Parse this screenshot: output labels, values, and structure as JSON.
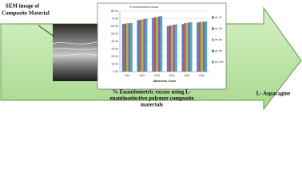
{
  "sem_label": [
    "SEM image of",
    "Composite Material"
  ],
  "caption": [
    "% Enantiometric excess using L-",
    "enantioselective polymer composite",
    "materials"
  ],
  "target_label": "L- Asparagine",
  "chart_data": {
    "type": "bar",
    "y_label": "% Enantiomeric excess",
    "x_label": "Materials Code",
    "categories": [
      "EA1",
      "EA2",
      "EA3",
      "EA4",
      "EA5",
      "EA6"
    ],
    "series": [
      {
        "name": "ee 2h",
        "color": "#4f81bd",
        "values": [
          63,
          68,
          71,
          60,
          63,
          65
        ]
      },
      {
        "name": "ee 4h",
        "color": "#c0504d",
        "values": [
          63.5,
          68.5,
          72,
          61,
          64,
          65.5
        ]
      },
      {
        "name": "ee 6h",
        "color": "#9bbb59",
        "values": [
          64,
          69,
          72.5,
          61.5,
          64.5,
          66
        ]
      },
      {
        "name": "ee 8h",
        "color": "#8064a2",
        "values": [
          64,
          69.5,
          73,
          62,
          65,
          66
        ]
      },
      {
        "name": "ee 10h",
        "color": "#4bacc6",
        "values": [
          64.5,
          70,
          73.5,
          62.5,
          65.5,
          66.5
        ]
      }
    ],
    "ylim": [
      0,
      80
    ],
    "yticks": [
      {
        "value": 0,
        "label": "0.00"
      },
      {
        "value": 10,
        "label": "10.00"
      },
      {
        "value": 20,
        "label": "20.00"
      },
      {
        "value": 30,
        "label": "30.00"
      },
      {
        "value": 40,
        "label": "40.00"
      },
      {
        "value": 50,
        "label": "50.00"
      },
      {
        "value": 60,
        "label": "60.00"
      },
      {
        "value": 70,
        "label": "70.00"
      },
      {
        "value": 80,
        "label": "80.00"
      }
    ],
    "grid": true,
    "legend": "right"
  }
}
